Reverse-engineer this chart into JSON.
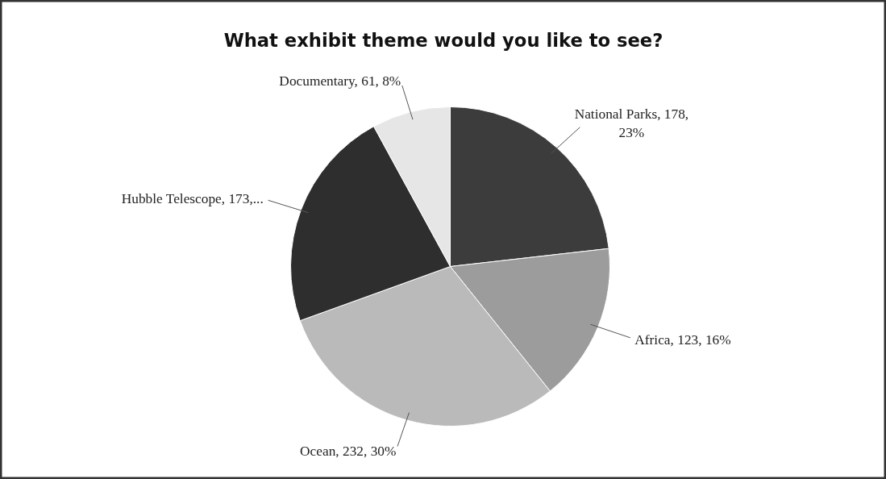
{
  "chart_data": {
    "type": "pie",
    "title": "What exhibit theme would you like to see?",
    "categories": [
      "National Parks",
      "Africa",
      "Ocean",
      "Hubble Telescope",
      "Documentary"
    ],
    "values": [
      178,
      123,
      232,
      173,
      61
    ],
    "colors": [
      "#3c3c3c",
      "#9c9c9c",
      "#bababa",
      "#2e2e2e",
      "#e6e6e6"
    ],
    "value_labels": [
      "178,\n23%",
      "123, 16%",
      "232, 30%",
      "173,...",
      "61, 8%"
    ],
    "legend": false
  }
}
